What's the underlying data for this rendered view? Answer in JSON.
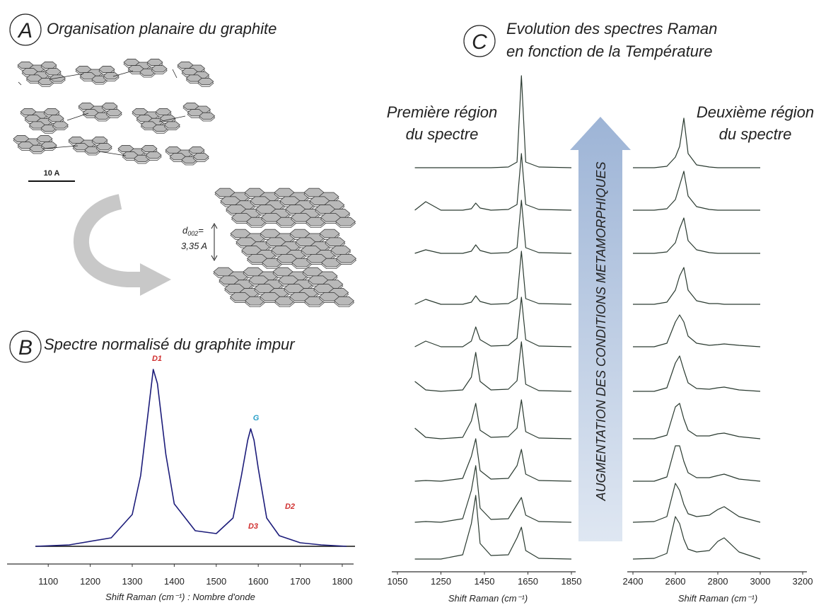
{
  "panel_labels": [
    "A",
    "B",
    "C"
  ],
  "diagram": {
    "title": "Organisation planaire du graphite",
    "scale_bar": "10 A",
    "spacing": {
      "symbol": "d",
      "subscript": "002",
      "suffix": "=",
      "value": "3,35 A"
    }
  },
  "panel_c": {
    "title": [
      "Evolution des spectres Raman",
      "en fonction de la Température"
    ],
    "arrow_label": "AUGMENTATION DES CONDITIONS METAMORPHIQUES"
  },
  "chart_data": [
    {
      "type": "line",
      "title": "Spectre normalisé du graphite impur",
      "x_label": "Shift Raman (cm⁻¹) : Nombre d'onde",
      "x": [
        1070,
        1150,
        1250,
        1300,
        1320,
        1340,
        1350,
        1360,
        1380,
        1400,
        1450,
        1500,
        1540,
        1560,
        1575,
        1582,
        1590,
        1600,
        1620,
        1650,
        1700,
        1750,
        1810
      ],
      "series": [
        {
          "color": "#1c1c7a",
          "values": [
            0,
            2,
            12,
            45,
            100,
            200,
            250,
            230,
            130,
            60,
            22,
            18,
            40,
            100,
            150,
            166,
            150,
            110,
            40,
            15,
            5,
            2,
            0
          ]
        }
      ],
      "peak_labels": [
        {
          "label": "D1",
          "color": "#d03030"
        },
        {
          "label": "G",
          "color": "#2aa0c8"
        },
        {
          "label": "D2",
          "color": "#d03030"
        },
        {
          "label": "D3",
          "color": "#d03030"
        }
      ],
      "xlim": [
        1002,
        1827
      ],
      "xticks": [
        1100,
        1200,
        1300,
        1400,
        1500,
        1600,
        1700,
        1800
      ]
    },
    {
      "type": "line",
      "title": [
        "Première région",
        "du spectre"
      ],
      "x_label": "Shift Raman (cm⁻¹)",
      "x": [
        1130,
        1180,
        1250,
        1350,
        1390,
        1410,
        1430,
        1480,
        1560,
        1600,
        1620,
        1640,
        1700,
        1850
      ],
      "series": [
        {
          "color": "#2a3a30",
          "values": [
            0,
            0,
            0,
            0,
            0,
            0,
            0,
            0,
            1,
            8,
            130,
            8,
            1,
            0
          ]
        },
        {
          "color": "#2a3a30",
          "values": [
            0,
            12,
            0,
            0,
            2,
            10,
            3,
            0,
            1,
            8,
            80,
            8,
            1,
            0
          ]
        },
        {
          "color": "#2a3a30",
          "values": [
            0,
            5,
            0,
            0,
            3,
            12,
            4,
            0,
            1,
            8,
            75,
            8,
            1,
            0
          ]
        },
        {
          "color": "#2a3a30",
          "values": [
            0,
            7,
            0,
            0,
            3,
            12,
            4,
            0,
            1,
            8,
            75,
            8,
            1,
            0
          ]
        },
        {
          "color": "#2a3a30",
          "values": [
            0,
            8,
            0,
            0,
            8,
            28,
            10,
            1,
            2,
            12,
            70,
            10,
            1,
            0
          ]
        },
        {
          "color": "#2a3a30",
          "values": [
            14,
            2,
            0,
            2,
            20,
            55,
            14,
            2,
            3,
            15,
            70,
            10,
            1,
            0
          ]
        },
        {
          "color": "#2a3a30",
          "values": [
            15,
            2,
            0,
            2,
            25,
            50,
            12,
            2,
            3,
            15,
            55,
            10,
            1,
            0
          ]
        },
        {
          "color": "#2a3a30",
          "values": [
            0,
            1,
            0,
            4,
            35,
            60,
            15,
            3,
            4,
            22,
            45,
            10,
            1,
            0
          ]
        },
        {
          "color": "#2a3a30",
          "values": [
            0,
            1,
            0,
            5,
            45,
            80,
            20,
            4,
            5,
            25,
            35,
            10,
            1,
            0
          ]
        },
        {
          "color": "#2a3a30",
          "values": [
            0,
            0,
            0,
            6,
            50,
            90,
            22,
            5,
            6,
            30,
            45,
            12,
            1,
            0
          ]
        }
      ],
      "xlim": [
        1050,
        1850
      ],
      "xticks": [
        1050,
        1250,
        1450,
        1650,
        1850
      ]
    },
    {
      "type": "line",
      "title": [
        "Deuxième région",
        "du spectre"
      ],
      "x_label": "Shift Raman (cm⁻¹)",
      "x": [
        2400,
        2500,
        2560,
        2600,
        2620,
        2640,
        2660,
        2700,
        2760,
        2800,
        2830,
        2900,
        3000
      ],
      "series": [
        {
          "color": "#2a3a30",
          "values": [
            0,
            0,
            2,
            15,
            30,
            70,
            20,
            4,
            1,
            0,
            0,
            0,
            0
          ]
        },
        {
          "color": "#2a3a30",
          "values": [
            0,
            0,
            2,
            15,
            35,
            55,
            20,
            5,
            1,
            0,
            0,
            0,
            0
          ]
        },
        {
          "color": "#2a3a30",
          "values": [
            0,
            0,
            2,
            15,
            35,
            50,
            18,
            5,
            1,
            0,
            0,
            0,
            0
          ]
        },
        {
          "color": "#2a3a30",
          "values": [
            0,
            0,
            3,
            20,
            40,
            52,
            20,
            5,
            1,
            1,
            0,
            0,
            0
          ]
        },
        {
          "color": "#2a3a30",
          "values": [
            0,
            0,
            5,
            35,
            45,
            35,
            15,
            5,
            2,
            3,
            4,
            2,
            0
          ]
        },
        {
          "color": "#2a3a30",
          "values": [
            0,
            0,
            5,
            40,
            50,
            30,
            12,
            4,
            3,
            5,
            6,
            2,
            0
          ]
        },
        {
          "color": "#2a3a30",
          "values": [
            0,
            0,
            5,
            45,
            50,
            28,
            12,
            4,
            4,
            7,
            8,
            3,
            0
          ]
        },
        {
          "color": "#2a3a30",
          "values": [
            0,
            0,
            6,
            50,
            50,
            28,
            12,
            5,
            5,
            8,
            10,
            3,
            0
          ]
        },
        {
          "color": "#2a3a30",
          "values": [
            0,
            1,
            8,
            55,
            45,
            25,
            12,
            8,
            10,
            18,
            22,
            8,
            0
          ]
        },
        {
          "color": "#2a3a30",
          "values": [
            0,
            1,
            8,
            60,
            50,
            28,
            14,
            10,
            12,
            25,
            30,
            10,
            0
          ]
        }
      ],
      "xlim": [
        2400,
        3200
      ],
      "xticks": [
        2400,
        2600,
        2800,
        3000,
        3200
      ]
    }
  ]
}
